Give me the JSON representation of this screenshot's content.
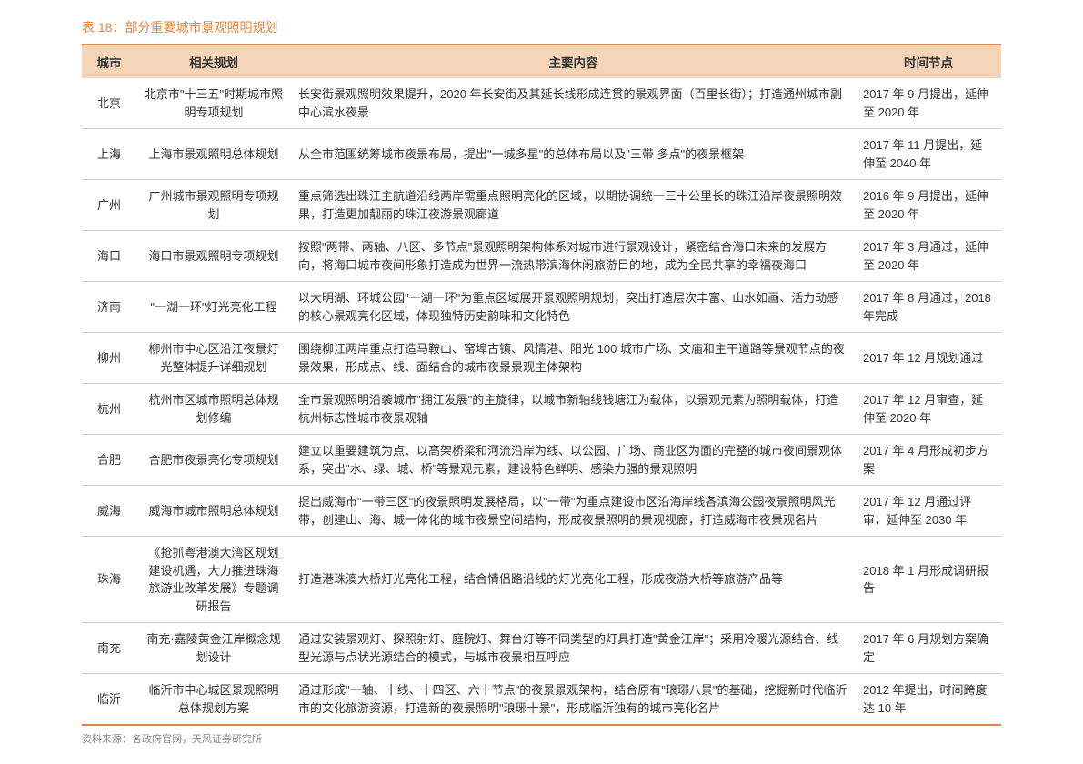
{
  "title": "表 18：部分重要城市景观照明规划",
  "columns": [
    "城市",
    "相关规划",
    "主要内容",
    "时间节点"
  ],
  "rows": [
    {
      "city": "北京",
      "plan": "北京市\"十三五\"时期城市照明专项规划",
      "content": "长安街景观照明效果提升，2020 年长安街及其延长线形成连贯的景观界面（百里长街）；打造通州城市副中心滨水夜景",
      "time": "2017 年 9 月提出，延伸至 2020 年"
    },
    {
      "city": "上海",
      "plan": "上海市景观照明总体规划",
      "content": "从全市范围统筹城市夜景布局，提出\"一城多星\"的总体布局以及\"三带  多点\"的夜景框架",
      "time": "2017 年 11 月提出，延伸至 2040 年"
    },
    {
      "city": "广州",
      "plan": "广州城市景观照明专项规划",
      "content": "重点筛选出珠江主航道沿线两岸需重点照明亮化的区域，以期协调统一三十公里长的珠江沿岸夜景照明效果，打造更加靓丽的珠江夜游景观廊道",
      "time": "2016 年 9 月提出，延伸至 2020 年"
    },
    {
      "city": "海口",
      "plan": "海口市景观照明专项规划",
      "content": "按照\"两带、两轴、八区、多节点\"景观照明架构体系对城市进行景观设计，紧密结合海口未来的发展方向，将海口城市夜间形象打造成为世界一流热带滨海休闲旅游目的地，成为全民共享的幸福夜海口",
      "time": "2017 年 3 月通过，延伸至 2020 年"
    },
    {
      "city": "济南",
      "plan": "\"一湖一环\"灯光亮化工程",
      "content": "以大明湖、环城公园\"一湖一环\"为重点区域展开景观照明规划，突出打造层次丰富、山水如画、活力动感的核心景观亮化区域，体现独特历史韵味和文化特色",
      "time": "2017 年 8 月通过，2018 年完成"
    },
    {
      "city": "柳州",
      "plan": "柳州市中心区沿江夜景灯光整体提升详细规划",
      "content": "围绕柳江两岸重点打造马鞍山、窑埠古镇、风情港、阳光 100 城市广场、文庙和主干道路等景观节点的夜景效果，形成点、线、面结合的城市夜景景观主体架构",
      "time": "2017 年 12 月规划通过"
    },
    {
      "city": "杭州",
      "plan": "杭州市区城市照明总体规划修编",
      "content": "全市景观照明沿袭城市\"拥江发展\"的主旋律，以城市新轴线钱塘江为载体，以景观元素为照明载体，打造杭州标志性城市夜景观轴",
      "time": "2017 年 12 月审查，延伸至 2020 年"
    },
    {
      "city": "合肥",
      "plan": "合肥市夜景亮化专项规划",
      "content": "建立以重要建筑为点、以高架桥梁和河流沿岸为线、以公园、广场、商业区为面的完整的城市夜间景观体系，突出\"水、绿、城、桥\"等景观元素，建设特色鲜明、感染力强的景观照明",
      "time": "2017 年 4 月形成初步方案"
    },
    {
      "city": "威海",
      "plan": "威海市城市照明总体规划",
      "content": "提出威海市\"一带三区\"的夜景照明发展格局，以\"一带\"为重点建设市区沿海岸线各滨海公园夜景照明风光带，创建山、海、城一体化的城市夜景空间结构，形成夜景照明的景观视廊，打造威海市夜景观名片",
      "time": "2017 年 12 月通过评审，延伸至 2030 年"
    },
    {
      "city": "珠海",
      "plan": "《抢抓粤港澳大湾区规划建设机遇，大力推进珠海旅游业改革发展》专题调研报告",
      "content": "打造港珠澳大桥灯光亮化工程，结合情侣路沿线的灯光亮化工程，形成夜游大桥等旅游产品等",
      "time": "2018 年 1 月形成调研报告"
    },
    {
      "city": "南充",
      "plan": "南充·嘉陵黄金江岸概念规划设计",
      "content": "通过安装景观灯、探照射灯、庭院灯、舞台灯等不同类型的灯具打造\"黄金江岸\"；采用冷暖光源结合、线型光源与点状光源结合的模式，与城市夜景相互呼应",
      "time": "2017 年 6 月规划方案确定"
    },
    {
      "city": "临沂",
      "plan": "临沂市中心城区景观照明总体规划方案",
      "content": "通过形成\"一轴、十线、十四区、六十节点\"的夜景景观架构，结合原有\"琅琊八景\"的基础，挖掘新时代临沂市的文化旅游资源，打造新的夜景照明\"琅琊十景\"，形成临沂独有的城市亮化名片",
      "time": "2012 年提出，时间跨度达 10 年"
    }
  ],
  "source": "资料来源：各政府官网，天风证券研究所"
}
